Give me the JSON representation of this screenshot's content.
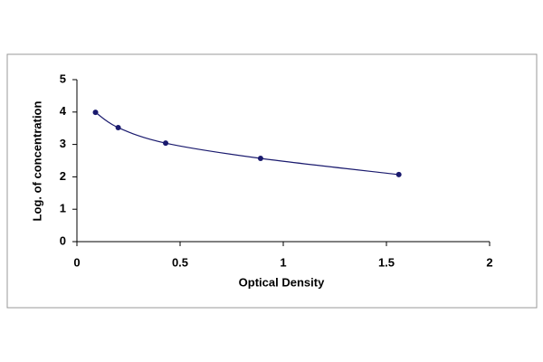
{
  "chart_data": {
    "type": "scatter",
    "x_label": "Optical Density",
    "y_label": "Log. of concentration",
    "x": [
      0.09,
      0.2,
      0.43,
      0.89,
      1.56
    ],
    "values": [
      3.99,
      3.52,
      3.04,
      2.57,
      2.07
    ],
    "color": "#1a1a6e",
    "line": true,
    "xlim": [
      0,
      2
    ],
    "xticks": [
      0,
      0.5,
      1,
      1.5,
      2
    ],
    "ylim": [
      0,
      5
    ],
    "yticks": [
      0,
      1,
      2,
      3,
      4,
      5
    ],
    "grid": false
  }
}
